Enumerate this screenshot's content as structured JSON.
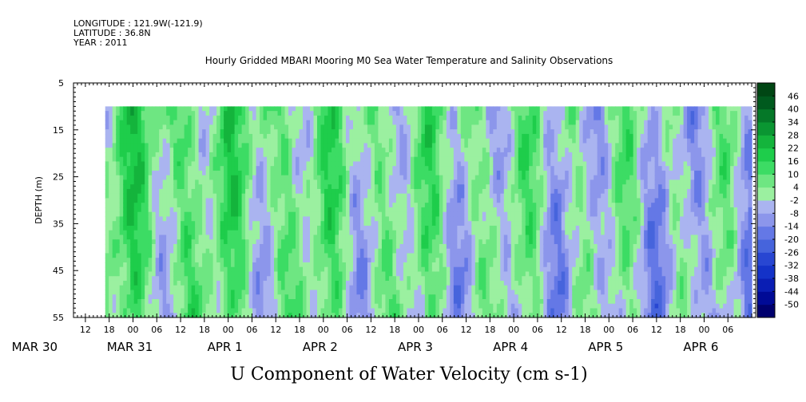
{
  "meta": {
    "longitude": "LONGITUDE : 121.9W(-121.9)",
    "latitude": "LATITUDE : 36.8N",
    "year": "YEAR : 2011"
  },
  "chart_data": {
    "type": "heatmap",
    "title": "Hourly Gridded MBARI Mooring M0 Sea Water Temperature and Salinity Observations",
    "xlabel": "",
    "ylabel": "DEPTH (m)",
    "bottom_title": "U Component of Water Velocity (cm s-1)",
    "y_ticks": [
      5,
      15,
      25,
      35,
      45,
      55
    ],
    "ylim": [
      5,
      55
    ],
    "y_reversed": true,
    "data_depth_range": [
      10,
      55
    ],
    "x_range_hours": [
      9,
      181
    ],
    "data_x_range_hours": [
      17,
      180
    ],
    "x_hour_ticks": [
      "12",
      "18",
      "00",
      "06",
      "12",
      "18",
      "00",
      "06",
      "12",
      "18",
      "00",
      "06",
      "12",
      "18",
      "00",
      "06",
      "12",
      "18",
      "00",
      "06",
      "12",
      "18",
      "00",
      "06",
      "12",
      "18",
      "00",
      "06"
    ],
    "x_date_labels": [
      "MAR 30",
      "MAR 31",
      "APR  1",
      "APR  2",
      "APR  3",
      "APR  4",
      "APR  5",
      "APR  6"
    ],
    "colorbar": {
      "levels": [
        -50,
        -44,
        -38,
        -32,
        -26,
        -20,
        -14,
        -8,
        -2,
        4,
        10,
        16,
        22,
        28,
        34,
        40,
        46
      ],
      "labels": [
        "46",
        "40",
        "34",
        "28",
        "22",
        "16",
        "10",
        "4",
        "-2",
        "-8",
        "-14",
        "-20",
        "-26",
        "-32",
        "-38",
        "-44",
        "-50"
      ],
      "colors_low_to_high": [
        "#00006e",
        "#000a96",
        "#0a1eb4",
        "#1432c8",
        "#2846d2",
        "#4664dc",
        "#6478e6",
        "#8c96eb",
        "#aab4f0",
        "#9bf0a0",
        "#6ee682",
        "#3cdc64",
        "#1ecd4b",
        "#14b43c",
        "#0a9632",
        "#057828",
        "#005a1e",
        "#004614"
      ]
    },
    "grid": false
  }
}
